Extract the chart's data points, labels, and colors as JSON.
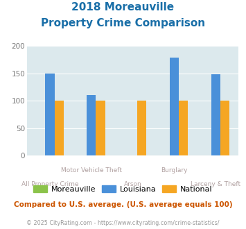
{
  "title_line1": "2018 Moreauville",
  "title_line2": "Property Crime Comparison",
  "categories": [
    "All Property Crime",
    "Motor Vehicle Theft",
    "Arson",
    "Burglary",
    "Larceny & Theft"
  ],
  "top_labels": [
    "",
    "Motor Vehicle Theft",
    "",
    "Burglary",
    ""
  ],
  "bottom_labels": [
    "All Property Crime",
    "",
    "Arson",
    "",
    "Larceny & Theft"
  ],
  "series": {
    "Moreauville": [
      0,
      0,
      0,
      0,
      0
    ],
    "Louisiana": [
      150,
      110,
      0,
      178,
      148
    ],
    "National": [
      100,
      100,
      100,
      100,
      100
    ]
  },
  "colors": {
    "Moreauville": "#8bc34a",
    "Louisiana": "#4a90d9",
    "National": "#f5a623"
  },
  "ylim": [
    0,
    200
  ],
  "yticks": [
    0,
    50,
    100,
    150,
    200
  ],
  "plot_bg_color": "#dce9ed",
  "title_color": "#1a6fa8",
  "axis_label_color": "#b0a0a0",
  "footer_text": "Compared to U.S. average. (U.S. average equals 100)",
  "footer_color": "#cc5500",
  "credit_text": "© 2025 CityRating.com - https://www.cityrating.com/crime-statistics/",
  "credit_color": "#999999",
  "bar_width": 0.22
}
